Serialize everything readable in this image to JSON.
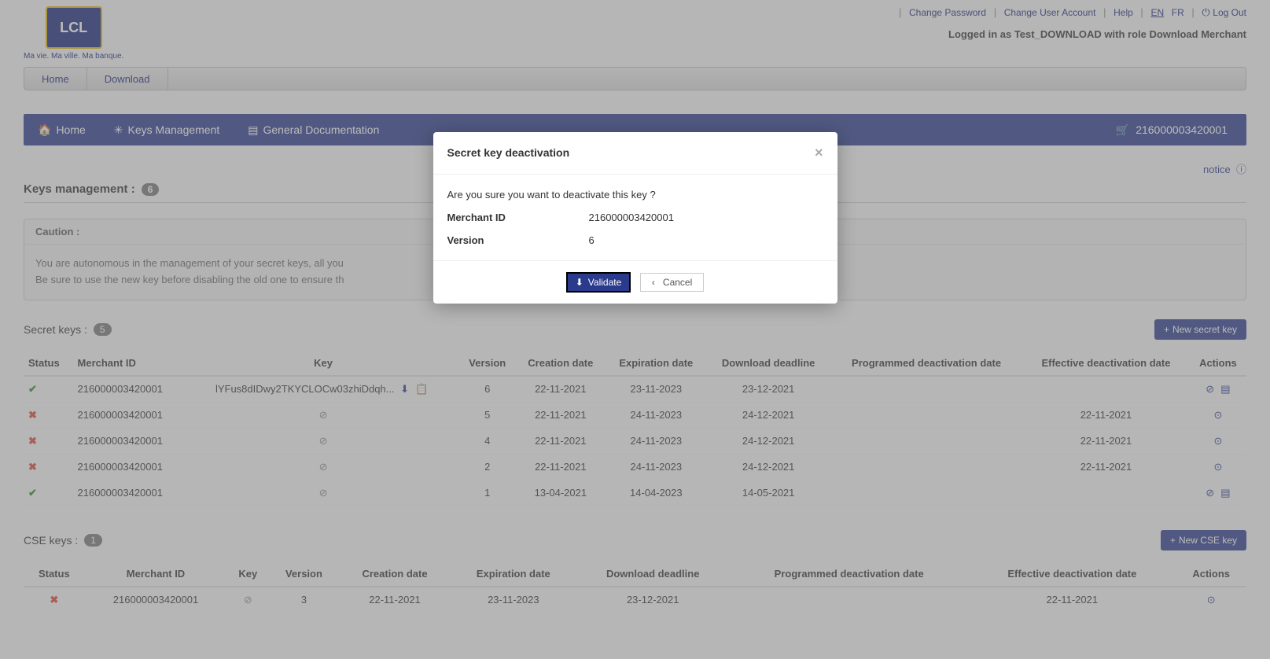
{
  "top": {
    "logo_text": "LCL",
    "logo_tag": "Ma vie. Ma ville. Ma banque.",
    "links": {
      "change_pw": "Change Password",
      "change_user": "Change User Account",
      "help": "Help",
      "lang_en": "EN",
      "lang_fr": "FR",
      "logout": "Log Out"
    },
    "logged_in": "Logged in as Test_DOWNLOAD with role Download Merchant"
  },
  "menu": {
    "home": "Home",
    "download": "Download"
  },
  "nav": {
    "home": "Home",
    "keys": "Keys Management",
    "docs": "General Documentation",
    "merchant_id": "216000003420001"
  },
  "page": {
    "notice": "notice",
    "keys_mgmt_label": "Keys management :",
    "keys_mgmt_count": "6",
    "caution_label": "Caution :",
    "caution_line1": "You are autonomous in the management of your secret keys, all you",
    "caution_line2": "Be sure to use the new key before disabling the old one to ensure th",
    "secret_keys_label": "Secret keys :",
    "secret_keys_count": "5",
    "new_secret_btn": "New secret key",
    "cse_keys_label": "CSE keys :",
    "cse_keys_count": "1",
    "new_cse_btn": "New CSE key",
    "columns": {
      "status": "Status",
      "merchant": "Merchant ID",
      "key": "Key",
      "version": "Version",
      "creation": "Creation date",
      "expiration": "Expiration date",
      "dl_deadline": "Download deadline",
      "prog_deact": "Programmed deactivation date",
      "eff_deact": "Effective deactivation date",
      "actions": "Actions"
    }
  },
  "secret_rows": [
    {
      "status": "ok",
      "merchant": "216000003420001",
      "key": "lYFus8dIDwy2TKYCLOCw03zhiDdqh...",
      "version": "6",
      "creation": "22-11-2021",
      "expiration": "23-11-2023",
      "dl": "23-12-2021",
      "prog": "",
      "eff": "",
      "actions": "deact_detail"
    },
    {
      "status": "x",
      "merchant": "216000003420001",
      "key": "∅",
      "version": "5",
      "creation": "22-11-2021",
      "expiration": "24-11-2023",
      "dl": "24-12-2021",
      "prog": "",
      "eff": "22-11-2021",
      "actions": "react"
    },
    {
      "status": "x",
      "merchant": "216000003420001",
      "key": "∅",
      "version": "4",
      "creation": "22-11-2021",
      "expiration": "24-11-2023",
      "dl": "24-12-2021",
      "prog": "",
      "eff": "22-11-2021",
      "actions": "react"
    },
    {
      "status": "x",
      "merchant": "216000003420001",
      "key": "∅",
      "version": "2",
      "creation": "22-11-2021",
      "expiration": "24-11-2023",
      "dl": "24-12-2021",
      "prog": "",
      "eff": "22-11-2021",
      "actions": "react"
    },
    {
      "status": "ok",
      "merchant": "216000003420001",
      "key": "∅",
      "version": "1",
      "creation": "13-04-2021",
      "expiration": "14-04-2023",
      "dl": "14-05-2021",
      "prog": "",
      "eff": "",
      "actions": "deact_detail"
    }
  ],
  "cse_rows": [
    {
      "status": "x",
      "merchant": "216000003420001",
      "key": "∅",
      "version": "3",
      "creation": "22-11-2021",
      "expiration": "23-11-2023",
      "dl": "23-12-2021",
      "prog": "",
      "eff": "22-11-2021",
      "actions": "react"
    }
  ],
  "modal": {
    "title": "Secret key deactivation",
    "question": "Are you sure you want to deactivate this key ?",
    "merchant_label": "Merchant ID",
    "merchant_value": "216000003420001",
    "version_label": "Version",
    "version_value": "6",
    "validate": "Validate",
    "cancel": "Cancel"
  },
  "colors": {
    "brand": "#2a3a8c",
    "brand_dark": "#18277a",
    "ok": "#2d8a2d",
    "err": "#d43"
  }
}
